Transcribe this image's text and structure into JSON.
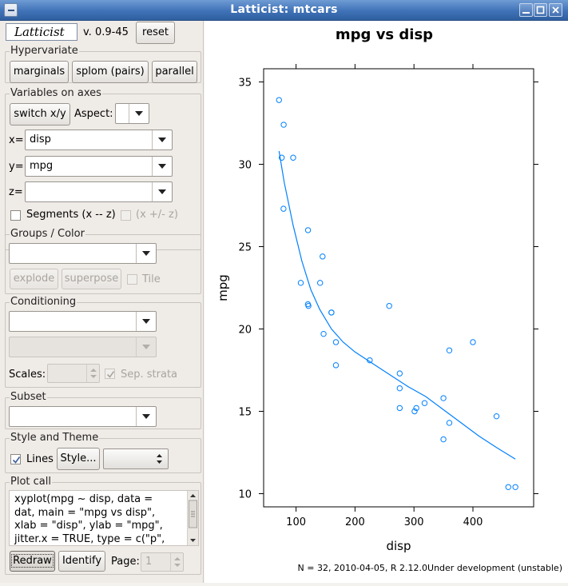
{
  "window": {
    "title": "Latticist: mtcars"
  },
  "header": {
    "logo_text": "Latticist",
    "version": "v. 0.9-45",
    "reset_label": "reset"
  },
  "hypervariate": {
    "title": "Hypervariate",
    "buttons": [
      "marginals",
      "splom (pairs)",
      "parallel"
    ]
  },
  "axes": {
    "title": "Variables on axes",
    "switch_label": "switch x/y",
    "aspect_label": "Aspect:",
    "aspect_value": "",
    "x_label": "x=",
    "x_value": "disp",
    "y_label": "y=",
    "y_value": "mpg",
    "z_label": "z=",
    "z_value": "",
    "segments_label": "Segments (x -- z)",
    "segments_checked": false,
    "pm_label": "(x +/- z)",
    "pm_checked": false
  },
  "groups": {
    "title": "Groups / Color",
    "value": "",
    "explode_label": "explode",
    "superpose_label": "superpose",
    "tile_label": "Tile",
    "tile_checked": false
  },
  "conditioning": {
    "title": "Conditioning",
    "value1": "",
    "value2": "",
    "scales_label": "Scales:",
    "scales_value": "",
    "sep_strata_label": "Sep. strata",
    "sep_strata_checked": true
  },
  "subset": {
    "title": "Subset",
    "value": ""
  },
  "style": {
    "title": "Style and Theme",
    "lines_label": "Lines",
    "lines_checked": true,
    "style_button_label": "Style...",
    "theme_value": ""
  },
  "plotcall": {
    "title": "Plot call",
    "lines": [
      "xyplot(mpg ~ disp, data =",
      "dat, main = \"mpg vs disp\",",
      "xlab = \"disp\", ylab = \"mpg\",",
      "jitter.x = TRUE, type = c(\"p\","
    ],
    "redraw_label": "Redraw",
    "identify_label": "Identify",
    "page_label": "Page:",
    "page_value": "1"
  },
  "colors": {
    "series": "#0080ff",
    "titlebar": "#3f72b8"
  },
  "chart_data": {
    "type": "scatter",
    "title": "mpg vs disp",
    "xlabel": "disp",
    "ylabel": "mpg",
    "xlim": [
      45,
      503
    ],
    "ylim": [
      9.2,
      35.8
    ],
    "xticks": [
      100,
      200,
      300,
      400
    ],
    "yticks": [
      10,
      15,
      20,
      25,
      30,
      35
    ],
    "grid": false,
    "footer": "N = 32, 2010-04-05, R 2.12.0Under development (unstable)",
    "series": [
      {
        "points": [
          [
            71.1,
            33.9
          ],
          [
            79.0,
            32.4
          ],
          [
            75.7,
            30.4
          ],
          [
            95.1,
            30.4
          ],
          [
            78.7,
            27.3
          ],
          [
            120.3,
            26.0
          ],
          [
            140.8,
            22.8
          ],
          [
            108.0,
            22.8
          ],
          [
            145.0,
            24.4
          ],
          [
            121.0,
            21.4
          ],
          [
            258.0,
            21.4
          ],
          [
            120.1,
            21.5
          ],
          [
            160.0,
            21.0
          ],
          [
            160.0,
            21.0
          ],
          [
            146.7,
            19.7
          ],
          [
            167.6,
            19.2
          ],
          [
            167.6,
            17.8
          ],
          [
            225.0,
            18.1
          ],
          [
            275.8,
            17.3
          ],
          [
            275.8,
            16.4
          ],
          [
            275.8,
            15.2
          ],
          [
            304.0,
            15.2
          ],
          [
            301.0,
            15.0
          ],
          [
            318.0,
            15.5
          ],
          [
            350.0,
            15.8
          ],
          [
            350.0,
            13.3
          ],
          [
            360.0,
            18.7
          ],
          [
            360.0,
            14.3
          ],
          [
            400.0,
            19.2
          ],
          [
            440.0,
            14.7
          ],
          [
            460.0,
            10.4
          ],
          [
            472.0,
            10.4
          ]
        ]
      }
    ],
    "smooth": [
      [
        71.1,
        30.8
      ],
      [
        80,
        28.9
      ],
      [
        95,
        26.3
      ],
      [
        110,
        24.1
      ],
      [
        125,
        22.4
      ],
      [
        140,
        21.2
      ],
      [
        160,
        20.0
      ],
      [
        180,
        19.2
      ],
      [
        200,
        18.6
      ],
      [
        230,
        17.9
      ],
      [
        260,
        17.2
      ],
      [
        290,
        16.5
      ],
      [
        320,
        15.9
      ],
      [
        350,
        15.1
      ],
      [
        380,
        14.3
      ],
      [
        410,
        13.5
      ],
      [
        440,
        12.8
      ],
      [
        472,
        12.1
      ]
    ]
  }
}
